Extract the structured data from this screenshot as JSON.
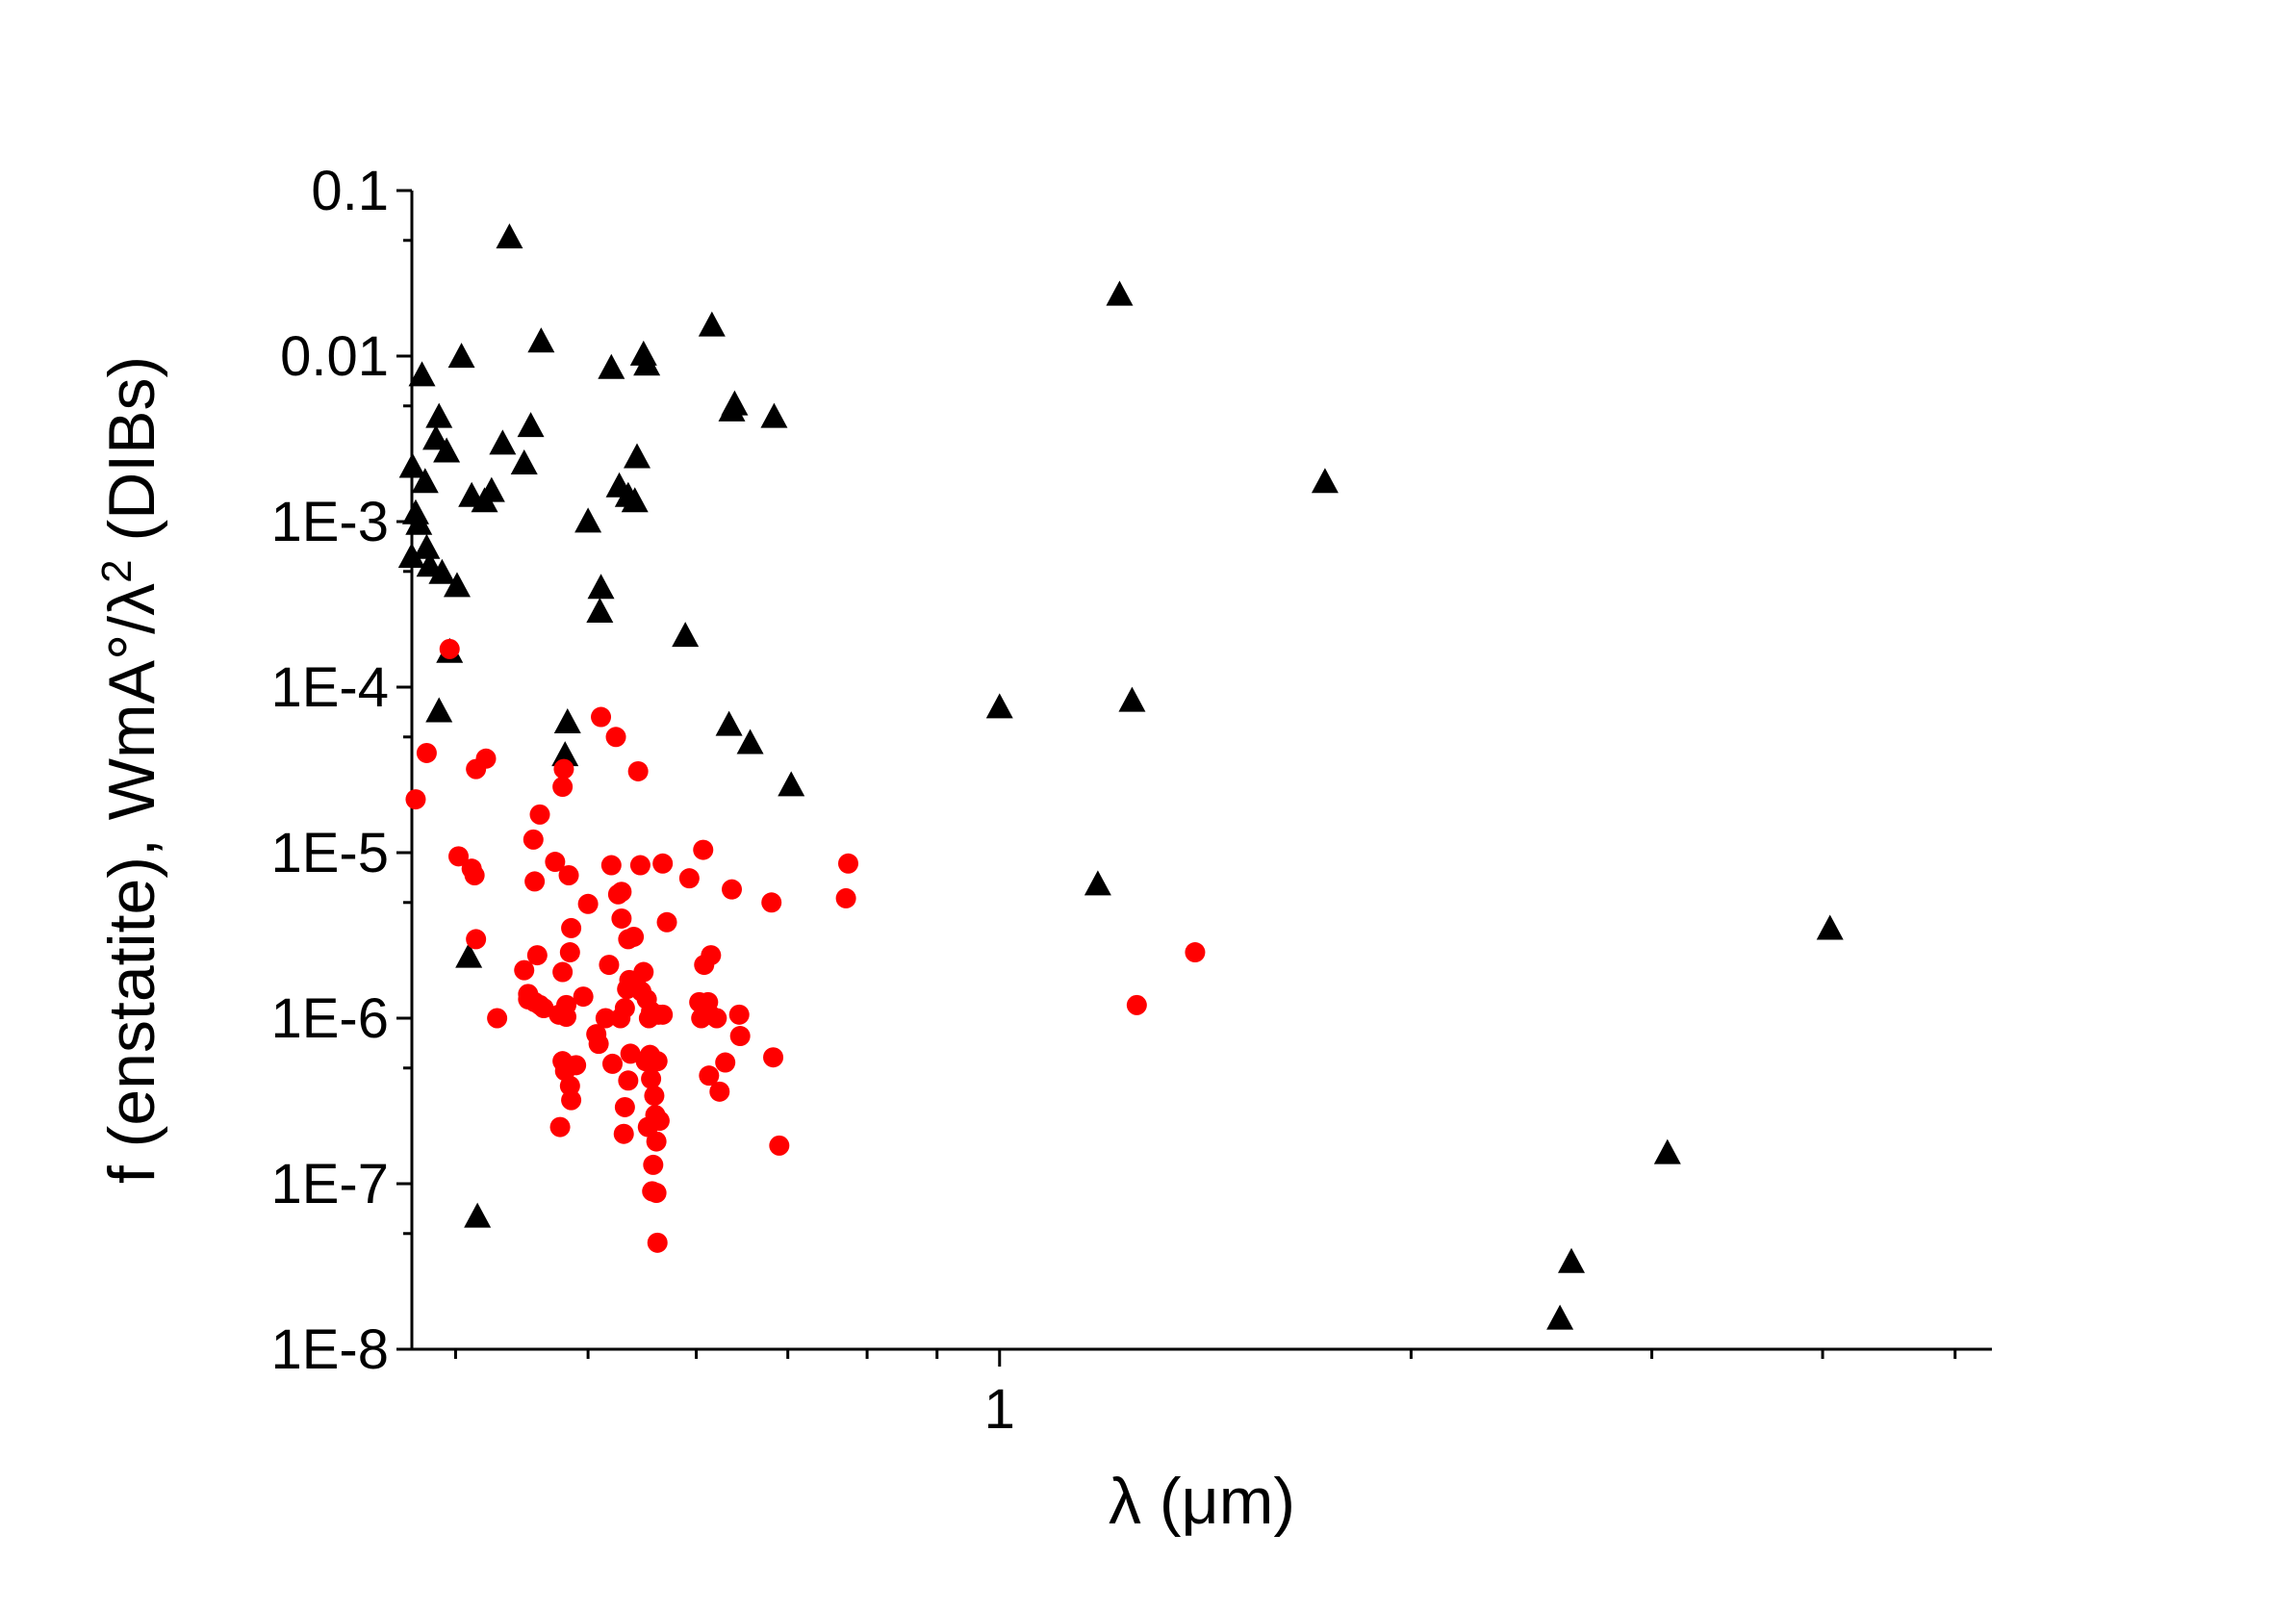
{
  "chart_data": {
    "type": "scatter",
    "xscale": "log",
    "yscale": "log",
    "xlim": [
      0.3716,
      5.32
    ],
    "ylim": [
      1e-08,
      0.1
    ],
    "x_ticks": [
      {
        "value": 1,
        "label": "1"
      }
    ],
    "y_ticks": [
      {
        "value": 0.1,
        "label": "0.1"
      },
      {
        "value": 0.01,
        "label": "0.01"
      },
      {
        "value": 0.001,
        "label": "1E-3"
      },
      {
        "value": 0.0001,
        "label": "1E-4"
      },
      {
        "value": 1e-05,
        "label": "1E-5"
      },
      {
        "value": 1e-06,
        "label": "1E-6"
      },
      {
        "value": 1e-07,
        "label": "1E-7"
      },
      {
        "value": 1e-08,
        "label": "1E-8"
      }
    ],
    "xlabel": "λ  (μm)",
    "ylabel_parts": {
      "main": "f (enstatite), WmA°/λ",
      "sup": "2",
      "tail": " (DIBs)"
    },
    "grid": false,
    "series": [
      {
        "marker": "triangle",
        "color": "#000000",
        "points": [
          [
            0.372,
            0.0021
          ],
          [
            0.3715,
            0.0006
          ],
          [
            0.374,
            0.0011
          ],
          [
            0.376,
            0.00095
          ],
          [
            0.378,
            0.0075
          ],
          [
            0.38,
            0.0017
          ],
          [
            0.381,
            0.00068
          ],
          [
            0.383,
            0.00053
          ],
          [
            0.387,
            0.0031
          ],
          [
            0.389,
            0.0042
          ],
          [
            0.391,
            0.00048
          ],
          [
            0.394,
            0.0026
          ],
          [
            0.396,
            0.00016
          ],
          [
            0.389,
            7e-05
          ],
          [
            0.401,
            0.0004
          ],
          [
            0.404,
            0.0097
          ],
          [
            0.411,
            0.0014
          ],
          [
            0.409,
            2.3e-06
          ],
          [
            0.415,
            6.2e-08
          ],
          [
            0.42,
            0.0013
          ],
          [
            0.425,
            0.0015
          ],
          [
            0.433,
            0.0029
          ],
          [
            0.438,
            0.051
          ],
          [
            0.449,
            0.0022
          ],
          [
            0.454,
            0.0037
          ],
          [
            0.462,
            0.012
          ],
          [
            0.481,
            3.8e-05
          ],
          [
            0.483,
            6e-05
          ],
          [
            0.5,
            0.00098
          ],
          [
            0.511,
            0.00039
          ],
          [
            0.51,
            0.00028
          ],
          [
            0.52,
            0.0083
          ],
          [
            0.527,
            0.0016
          ],
          [
            0.535,
            0.0014
          ],
          [
            0.541,
            0.0013
          ],
          [
            0.543,
            0.0024
          ],
          [
            0.549,
            0.01
          ],
          [
            0.552,
            0.0087
          ],
          [
            0.589,
            0.0002
          ],
          [
            0.616,
            0.015
          ],
          [
            0.634,
            5.8e-05
          ],
          [
            0.637,
            0.0046
          ],
          [
            0.64,
            0.005
          ],
          [
            0.657,
            4.5e-05
          ],
          [
            0.684,
            0.0042
          ],
          [
            0.704,
            2.5e-05
          ],
          [
            1.0,
            7.4e-05
          ],
          [
            1.18,
            6.3e-06
          ],
          [
            1.224,
            0.023
          ],
          [
            1.25,
            8.1e-05
          ],
          [
            1.73,
            0.0017
          ],
          [
            2.57,
            1.5e-08
          ],
          [
            2.62,
            3.3e-08
          ],
          [
            3.08,
            1.5e-07
          ],
          [
            4.05,
            3.4e-06
          ]
        ]
      },
      {
        "marker": "circle",
        "color": "#ff0000",
        "points": [
          [
            0.374,
            2.1e-05
          ],
          [
            0.381,
            4e-05
          ],
          [
            0.396,
            0.00017
          ],
          [
            0.402,
            9.5e-06
          ],
          [
            0.411,
            8e-06
          ],
          [
            0.413,
            7.3e-06
          ],
          [
            0.414,
            3e-06
          ],
          [
            0.414,
            3.2e-05
          ],
          [
            0.421,
            3.7e-05
          ],
          [
            0.429,
            1e-06
          ],
          [
            0.449,
            1.95e-06
          ],
          [
            0.452,
            1.3e-06
          ],
          [
            0.452,
            1.4e-06
          ],
          [
            0.456,
            1.2e-05
          ],
          [
            0.457,
            1.25e-06
          ],
          [
            0.457,
            6.7e-06
          ],
          [
            0.459,
            2.4e-06
          ],
          [
            0.461,
            1.7e-05
          ],
          [
            0.461,
            1.2e-06
          ],
          [
            0.464,
            1.15e-06
          ],
          [
            0.473,
            8.8e-06
          ],
          [
            0.476,
            1.05e-06
          ],
          [
            0.477,
            2.2e-07
          ],
          [
            0.479,
            5.5e-07
          ],
          [
            0.479,
            1.9e-06
          ],
          [
            0.479,
            2.5e-05
          ],
          [
            0.48,
            3.2e-05
          ],
          [
            0.481,
            4.8e-07
          ],
          [
            0.482,
            1.2e-06
          ],
          [
            0.482,
            1.02e-06
          ],
          [
            0.484,
            7.3e-06
          ],
          [
            0.485,
            3.9e-07
          ],
          [
            0.485,
            2.5e-06
          ],
          [
            0.486,
            3.5e-06
          ],
          [
            0.486,
            3.2e-07
          ],
          [
            0.49,
            5.2e-07
          ],
          [
            0.496,
            1.35e-06
          ],
          [
            0.5,
            4.9e-06
          ],
          [
            0.507,
            8e-07
          ],
          [
            0.509,
            7e-07
          ],
          [
            0.511,
            6.6e-05
          ],
          [
            0.515,
            1e-06
          ],
          [
            0.518,
            2.1e-06
          ],
          [
            0.52,
            8.4e-06
          ],
          [
            0.521,
            5.3e-07
          ],
          [
            0.524,
            5e-05
          ],
          [
            0.526,
            5.6e-06
          ],
          [
            0.528,
            1e-06
          ],
          [
            0.529,
            5.8e-06
          ],
          [
            0.529,
            4e-06
          ],
          [
            0.531,
            2e-07
          ],
          [
            0.532,
            2.9e-07
          ],
          [
            0.532,
            1.15e-06
          ],
          [
            0.534,
            1.5e-06
          ],
          [
            0.535,
            3e-06
          ],
          [
            0.535,
            4.2e-07
          ],
          [
            0.536,
            1.7e-06
          ],
          [
            0.537,
            6.1e-07
          ],
          [
            0.54,
            3.1e-06
          ],
          [
            0.542,
            1.6e-06
          ],
          [
            0.544,
            3.1e-05
          ],
          [
            0.546,
            8.4e-06
          ],
          [
            0.547,
            1.45e-06
          ],
          [
            0.549,
            1.9e-06
          ],
          [
            0.551,
            5.5e-07
          ],
          [
            0.552,
            1.3e-06
          ],
          [
            0.553,
            2.2e-07
          ],
          [
            0.554,
            1e-06
          ],
          [
            0.555,
            6e-07
          ],
          [
            0.556,
            1.1e-06
          ],
          [
            0.556,
            4.3e-07
          ],
          [
            0.557,
            9e-08
          ],
          [
            0.558,
            1.3e-07
          ],
          [
            0.559,
            3.4e-07
          ],
          [
            0.56,
            2.6e-07
          ],
          [
            0.561,
            1.8e-07
          ],
          [
            0.561,
            8.8e-08
          ],
          [
            0.562,
            4.4e-08
          ],
          [
            0.562,
            5.5e-07
          ],
          [
            0.563,
            1.05e-06
          ],
          [
            0.564,
            2.4e-07
          ],
          [
            0.567,
            1.05e-06
          ],
          [
            0.567,
            8.6e-06
          ],
          [
            0.571,
            3.8e-06
          ],
          [
            0.593,
            7e-06
          ],
          [
            0.603,
            1.25e-06
          ],
          [
            0.605,
            1e-06
          ],
          [
            0.607,
            1.04e-05
          ],
          [
            0.608,
            2.1e-06
          ],
          [
            0.612,
            1.25e-06
          ],
          [
            0.613,
            4.5e-07
          ],
          [
            0.614,
            1.05e-06
          ],
          [
            0.615,
            2.4e-06
          ],
          [
            0.621,
            1e-06
          ],
          [
            0.624,
            3.6e-07
          ],
          [
            0.63,
            5.4e-07
          ],
          [
            0.637,
            6e-06
          ],
          [
            0.645,
            1.05e-06
          ],
          [
            0.646,
            7.8e-07
          ],
          [
            0.681,
            5e-06
          ],
          [
            0.683,
            5.8e-07
          ],
          [
            0.69,
            1.7e-07
          ],
          [
            0.772,
            5.3e-06
          ],
          [
            0.775,
            8.6e-06
          ],
          [
            1.26,
            1.2e-06
          ],
          [
            1.39,
            2.5e-06
          ]
        ]
      }
    ]
  }
}
